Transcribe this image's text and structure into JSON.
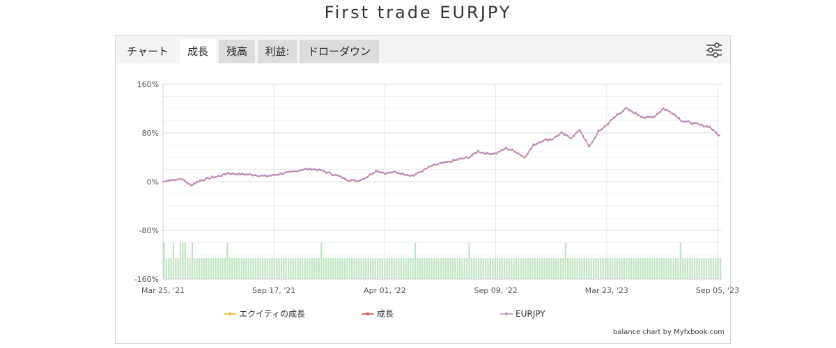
{
  "page": {
    "title": "First trade EURJPY"
  },
  "tabs": [
    {
      "id": "chart",
      "label": "チャート"
    },
    {
      "id": "growth",
      "label": "成長"
    },
    {
      "id": "balance",
      "label": "残高"
    },
    {
      "id": "profit",
      "label": "利益:"
    },
    {
      "id": "drawdown",
      "label": "ドローダウン"
    }
  ],
  "settings_icon": "sliders-icon",
  "credit": "balance chart by Myfxbook.com",
  "chart_data": {
    "type": "line",
    "ylim": [
      -160,
      160
    ],
    "y_ticks": [
      160,
      80,
      0,
      -80,
      -160
    ],
    "y_tick_labels": [
      "160%",
      "80%",
      "0%",
      "-80%",
      "-160%"
    ],
    "x_ticks": [
      "Mar 25, '21",
      "Sep 17, '21",
      "Apr 01, '22",
      "Sep 09, '22",
      "Mar 23, '23",
      "Sep 05, '23"
    ],
    "grid": true,
    "legend_position": "bottom",
    "series": [
      {
        "name": "エクイティの成長",
        "color": "#f0b429",
        "style": "line"
      },
      {
        "name": "成長",
        "color": "#e0474c",
        "style": "line"
      },
      {
        "name": "EURJPY",
        "color": "#b98bc2",
        "style": "line"
      }
    ],
    "growth_curve": [
      [
        0,
        0
      ],
      [
        1,
        3
      ],
      [
        2,
        5
      ],
      [
        3,
        -6
      ],
      [
        4,
        2
      ],
      [
        5,
        6
      ],
      [
        6,
        9
      ],
      [
        7,
        14
      ],
      [
        8,
        13
      ],
      [
        9,
        12
      ],
      [
        10,
        11
      ],
      [
        11,
        9
      ],
      [
        12,
        11
      ],
      [
        13,
        14
      ],
      [
        14,
        16
      ],
      [
        15,
        20
      ],
      [
        16,
        21
      ],
      [
        17,
        19
      ],
      [
        18,
        14
      ],
      [
        19,
        9
      ],
      [
        20,
        3
      ],
      [
        21,
        1
      ],
      [
        22,
        8
      ],
      [
        23,
        18
      ],
      [
        24,
        14
      ],
      [
        25,
        16
      ],
      [
        26,
        13
      ],
      [
        27,
        10
      ],
      [
        28,
        18
      ],
      [
        29,
        26
      ],
      [
        30,
        30
      ],
      [
        31,
        33
      ],
      [
        32,
        37
      ],
      [
        33,
        40
      ],
      [
        34,
        50
      ],
      [
        35,
        46
      ],
      [
        36,
        47
      ],
      [
        37,
        55
      ],
      [
        38,
        50
      ],
      [
        39,
        40
      ],
      [
        40,
        60
      ],
      [
        41,
        68
      ],
      [
        42,
        70
      ],
      [
        43,
        80
      ],
      [
        44,
        72
      ],
      [
        45,
        85
      ],
      [
        46,
        57
      ],
      [
        47,
        82
      ],
      [
        48,
        95
      ],
      [
        49,
        110
      ],
      [
        50,
        120
      ],
      [
        51,
        112
      ],
      [
        52,
        105
      ],
      [
        53,
        107
      ],
      [
        54,
        120
      ],
      [
        55,
        113
      ],
      [
        56,
        100
      ],
      [
        57,
        97
      ],
      [
        58,
        93
      ],
      [
        59,
        90
      ],
      [
        60,
        76
      ]
    ],
    "curve_x_max": 60,
    "volume_bars": [
      2,
      1,
      1,
      1,
      2,
      1,
      1,
      2,
      2,
      2,
      1,
      1,
      2,
      1,
      1,
      1,
      1,
      1,
      1,
      1,
      1,
      1,
      1,
      1,
      1,
      1,
      1,
      2,
      1,
      1,
      1,
      1,
      1,
      1,
      1,
      1,
      1,
      1,
      1,
      1,
      1,
      1,
      1,
      1,
      1,
      1,
      1,
      1,
      1,
      1,
      1,
      1,
      1,
      1,
      1,
      1,
      1,
      1,
      1,
      1,
      1,
      1,
      1,
      1,
      1,
      1,
      1,
      2,
      1,
      1,
      1,
      1,
      1,
      1,
      1,
      1,
      1,
      1,
      1,
      1,
      1,
      1,
      1,
      1,
      1,
      1,
      1,
      1,
      1,
      1,
      1,
      1,
      1,
      1,
      1,
      1,
      1,
      1,
      1,
      1,
      1,
      1,
      1,
      1,
      1,
      1,
      1,
      2,
      1,
      1,
      1,
      1,
      1,
      1,
      1,
      1,
      1,
      1,
      1,
      1,
      1,
      1,
      1,
      1,
      1,
      1,
      1,
      1,
      1,
      1,
      2,
      1,
      1,
      1,
      1,
      1,
      1,
      1,
      1,
      1,
      1,
      1,
      1,
      1,
      1,
      1,
      1,
      1,
      1,
      1,
      1,
      1,
      1,
      1,
      1,
      1,
      1,
      1,
      1,
      1,
      1,
      1,
      1,
      1,
      1,
      1,
      1,
      1,
      1,
      1,
      1,
      2,
      1,
      1,
      1,
      1,
      1,
      1,
      1,
      1,
      1,
      1,
      1,
      1,
      1,
      1,
      1,
      1,
      1,
      1,
      1,
      1,
      1,
      1,
      1,
      1,
      1,
      1,
      1,
      1,
      1,
      1,
      1,
      1,
      1,
      1,
      1,
      1,
      1,
      1,
      1,
      1,
      1,
      1,
      1,
      1,
      1,
      1,
      1,
      1,
      2,
      1,
      1,
      1,
      1,
      1,
      1,
      1,
      1,
      1,
      1,
      1,
      1,
      1,
      1,
      1,
      1,
      1
    ]
  }
}
